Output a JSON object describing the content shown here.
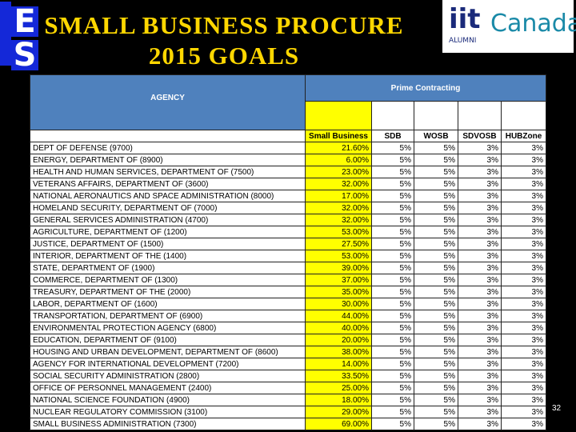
{
  "header": {
    "title_line1": "SMALL BUSINESS PROCURE",
    "title_line2": "2015 GOALS",
    "logo_left": [
      "E",
      "S"
    ],
    "logo_right": {
      "iit": "iit",
      "alumni": "ALUMNI",
      "country": "Canada"
    }
  },
  "table": {
    "agency_header": "AGENCY",
    "group_header": "Prime Contracting",
    "columns": [
      "Small Business",
      "SDB",
      "WOSB",
      "SDVOSB",
      "HUBZone"
    ],
    "rows": [
      [
        "DEPT OF DEFENSE (9700)",
        "21.60%",
        "5%",
        "5%",
        "3%",
        "3%"
      ],
      [
        "ENERGY, DEPARTMENT OF (8900)",
        "6.00%",
        "5%",
        "5%",
        "3%",
        "3%"
      ],
      [
        "HEALTH AND HUMAN SERVICES, DEPARTMENT OF (7500)",
        "23.00%",
        "5%",
        "5%",
        "3%",
        "3%"
      ],
      [
        "VETERANS AFFAIRS, DEPARTMENT OF (3600)",
        "32.00%",
        "5%",
        "5%",
        "3%",
        "3%"
      ],
      [
        "NATIONAL AERONAUTICS AND SPACE ADMINISTRATION (8000)",
        "17.00%",
        "5%",
        "5%",
        "3%",
        "3%"
      ],
      [
        "HOMELAND SECURITY, DEPARTMENT OF (7000)",
        "32.00%",
        "5%",
        "5%",
        "3%",
        "3%"
      ],
      [
        "GENERAL SERVICES ADMINISTRATION (4700)",
        "32.00%",
        "5%",
        "5%",
        "3%",
        "3%"
      ],
      [
        "AGRICULTURE, DEPARTMENT OF (1200)",
        "53.00%",
        "5%",
        "5%",
        "3%",
        "3%"
      ],
      [
        "JUSTICE, DEPARTMENT OF (1500)",
        "27.50%",
        "5%",
        "5%",
        "3%",
        "3%"
      ],
      [
        "INTERIOR, DEPARTMENT OF THE (1400)",
        "53.00%",
        "5%",
        "5%",
        "3%",
        "3%"
      ],
      [
        "STATE, DEPARTMENT OF (1900)",
        "39.00%",
        "5%",
        "5%",
        "3%",
        "3%"
      ],
      [
        "COMMERCE, DEPARTMENT OF (1300)",
        "37.00%",
        "5%",
        "5%",
        "3%",
        "3%"
      ],
      [
        "TREASURY, DEPARTMENT OF THE (2000)",
        "35.00%",
        "5%",
        "5%",
        "3%",
        "3%"
      ],
      [
        "LABOR, DEPARTMENT OF (1600)",
        "30.00%",
        "5%",
        "5%",
        "3%",
        "3%"
      ],
      [
        "TRANSPORTATION, DEPARTMENT OF (6900)",
        "44.00%",
        "5%",
        "5%",
        "3%",
        "3%"
      ],
      [
        "ENVIRONMENTAL PROTECTION AGENCY (6800)",
        "40.00%",
        "5%",
        "5%",
        "3%",
        "3%"
      ],
      [
        "EDUCATION, DEPARTMENT OF (9100)",
        "20.00%",
        "5%",
        "5%",
        "3%",
        "3%"
      ],
      [
        "HOUSING AND URBAN DEVELOPMENT, DEPARTMENT OF (8600)",
        "38.00%",
        "5%",
        "5%",
        "3%",
        "3%"
      ],
      [
        "AGENCY FOR INTERNATIONAL DEVELOPMENT (7200)",
        "14.00%",
        "5%",
        "5%",
        "3%",
        "3%"
      ],
      [
        "SOCIAL SECURITY ADMINISTRATION (2800)",
        "33.50%",
        "5%",
        "5%",
        "3%",
        "3%"
      ],
      [
        "OFFICE OF PERSONNEL MANAGEMENT (2400)",
        "25.00%",
        "5%",
        "5%",
        "3%",
        "3%"
      ],
      [
        "NATIONAL SCIENCE FOUNDATION (4900)",
        "18.00%",
        "5%",
        "5%",
        "3%",
        "3%"
      ],
      [
        "NUCLEAR REGULATORY COMMISSION (3100)",
        "29.00%",
        "5%",
        "5%",
        "3%",
        "3%"
      ],
      [
        "SMALL BUSINESS ADMINISTRATION (7300)",
        "69.00%",
        "5%",
        "5%",
        "3%",
        "3%"
      ]
    ]
  },
  "footer": {
    "page_number": "32"
  }
}
